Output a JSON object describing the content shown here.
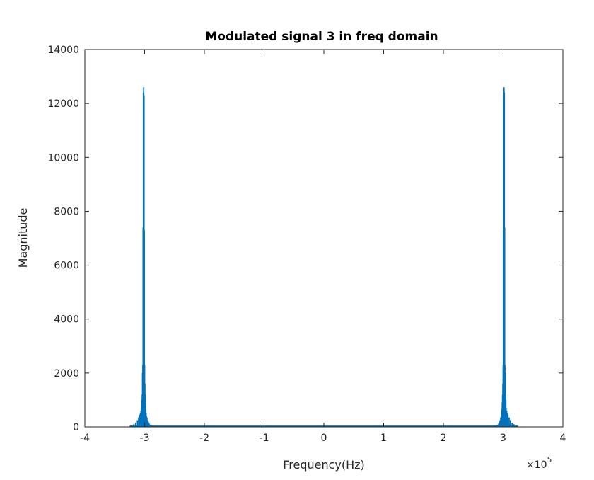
{
  "chart_data": {
    "type": "bar",
    "title": "Modulated signal 3 in freq domain",
    "xlabel": "Frequency(Hz)",
    "ylabel": "Magnitude",
    "xlim": [
      -4,
      4
    ],
    "ylim": [
      0,
      14000
    ],
    "x_multiplier": {
      "base": "×10",
      "exponent": "5"
    },
    "xticks": [
      -4,
      -3,
      -2,
      -1,
      0,
      1,
      2,
      3,
      4
    ],
    "xtick_labels": [
      "-4",
      "-3",
      "-2",
      "-1",
      "0",
      "1",
      "2",
      "3",
      "4"
    ],
    "yticks": [
      0,
      2000,
      4000,
      6000,
      8000,
      10000,
      12000,
      14000
    ],
    "ytick_labels": [
      "0",
      "2000",
      "4000",
      "6000",
      "8000",
      "10000",
      "12000",
      "14000"
    ],
    "grid": false,
    "series": [
      {
        "color": "#0072BD",
        "x": [
          -3.22,
          -3.18,
          -3.15,
          -3.12,
          -3.1,
          -3.08,
          -3.07,
          -3.06,
          -3.05,
          -3.045,
          -3.04,
          -3.035,
          -3.03,
          -3.025,
          -3.02,
          -3.015,
          -3.01,
          -3.005,
          -3.0,
          -2.995,
          -2.99,
          -2.985,
          -2.98,
          -2.975,
          -2.97,
          -2.96,
          -2.95,
          -2.94,
          -2.93,
          -2.92,
          -2.9,
          -2.88,
          -2.85,
          -2.82,
          -2.78,
          2.78,
          2.82,
          2.85,
          2.88,
          2.9,
          2.92,
          2.93,
          2.94,
          2.95,
          2.96,
          2.97,
          2.975,
          2.98,
          2.985,
          2.99,
          2.995,
          3.0,
          3.005,
          3.01,
          3.015,
          3.02,
          3.025,
          3.03,
          3.035,
          3.04,
          3.045,
          3.05,
          3.06,
          3.07,
          3.08,
          3.1,
          3.12,
          3.15,
          3.18,
          3.22
        ],
        "values": [
          50,
          100,
          150,
          250,
          350,
          450,
          500,
          600,
          700,
          1000,
          1200,
          2000,
          2300,
          7400,
          12400,
          12600,
          12300,
          7300,
          2300,
          1600,
          1200,
          900,
          650,
          500,
          400,
          350,
          250,
          200,
          150,
          100,
          80,
          60,
          40,
          30,
          20,
          20,
          30,
          40,
          60,
          80,
          100,
          150,
          200,
          250,
          350,
          400,
          500,
          650,
          900,
          1200,
          1600,
          2300,
          7300,
          12300,
          12600,
          12400,
          7400,
          2300,
          2000,
          1200,
          1000,
          700,
          600,
          500,
          450,
          350,
          250,
          150,
          100,
          50
        ]
      }
    ]
  }
}
